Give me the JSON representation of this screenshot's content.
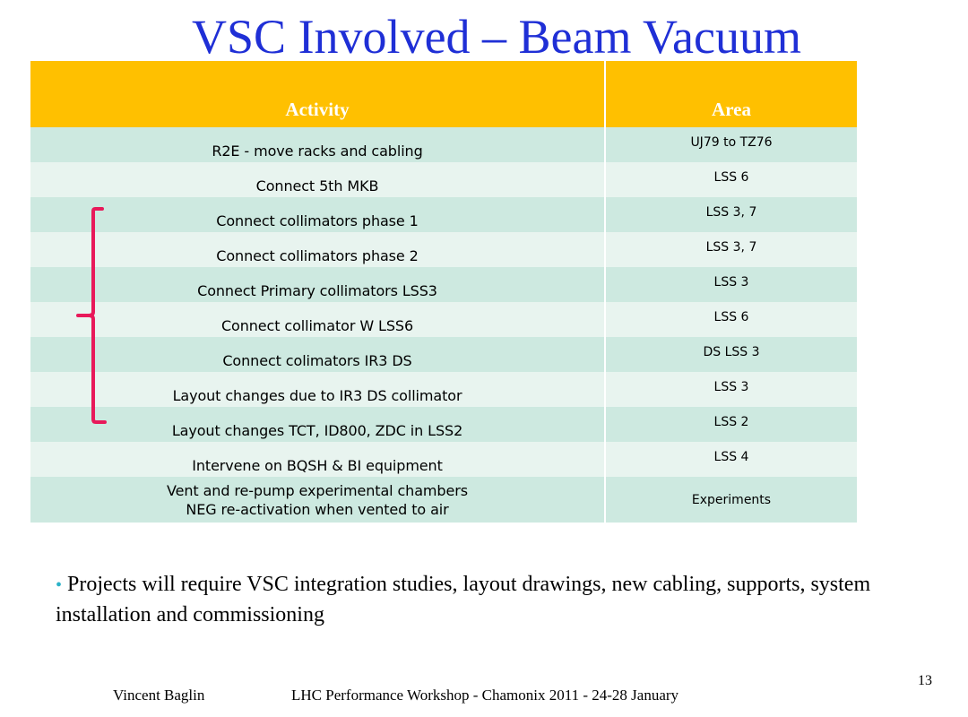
{
  "slide": {
    "title": "VSC Involved – Beam Vacuum",
    "table": {
      "headers": [
        "Activity",
        "Area"
      ],
      "rows": [
        {
          "activity": "R2E - move racks and cabling",
          "area": "UJ79 to TZ76"
        },
        {
          "activity": "Connect 5th MKB",
          "area": "LSS 6"
        },
        {
          "activity": "Connect collimators phase 1",
          "area": "LSS 3, 7"
        },
        {
          "activity": "Connect collimators phase 2",
          "area": "LSS 3, 7"
        },
        {
          "activity": "Connect Primary collimators LSS3",
          "area": "LSS 3"
        },
        {
          "activity": "Connect collimator W LSS6",
          "area": "LSS 6"
        },
        {
          "activity": "Connect colimators IR3 DS",
          "area": "DS LSS 3"
        },
        {
          "activity": "Layout changes due to IR3 DS collimator",
          "area": "LSS 3"
        },
        {
          "activity": "Layout changes TCT, ID800, ZDC in LSS2",
          "area": "LSS 2"
        },
        {
          "activity": "Intervene on BQSH & BI equipment",
          "area": "LSS 4"
        },
        {
          "activity_line1": "Vent and re-pump experimental chambers",
          "activity_line2": "NEG re-activation when vented to air",
          "area": "Experiments"
        }
      ]
    },
    "bullet": "Projects will require VSC integration studies, layout drawings, new cabling, supports, system installation and commissioning",
    "footer": {
      "author": "Vincent Baglin",
      "event": "LHC Performance Workshop - Chamonix 2011 - 24-28 January",
      "page": "13"
    }
  },
  "colors": {
    "title": "#1f2fd6",
    "header_bg": "#ffc000",
    "row_odd": "#cde9e0",
    "row_even": "#e8f4ef",
    "brace": "#e8195a",
    "bullet_dot": "#2bb2c8"
  }
}
